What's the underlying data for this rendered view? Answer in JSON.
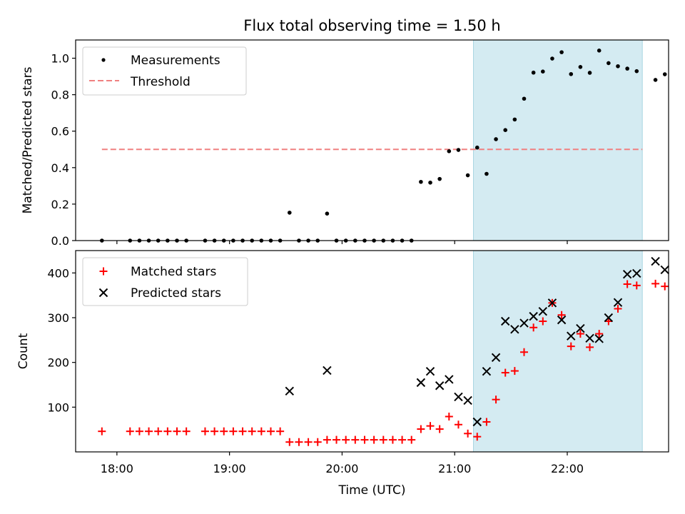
{
  "chart_data": [
    {
      "type": "scatter",
      "title": "Flux total observing time = 1.50 h",
      "xlabel": "",
      "ylabel": "Matched/Predicted stars",
      "ylim": [
        0,
        1.1
      ],
      "xlim": [
        "17:38",
        "22:54"
      ],
      "yticks": [
        0.0,
        0.2,
        0.4,
        0.6,
        0.8,
        1.0
      ],
      "yticklabels": [
        "0.0",
        "0.2",
        "0.4",
        "0.6",
        "0.8",
        "1.0"
      ],
      "highlight_span": {
        "start": "21:10",
        "end": "22:40",
        "color": "#d4ebf2"
      },
      "legend": {
        "placement": "upper-left",
        "entries": [
          "Measurements",
          "Threshold"
        ]
      },
      "series": [
        {
          "name": "Measurements",
          "color": "#000000",
          "marker": "dot",
          "points": [
            [
              "17:52",
              0.0
            ],
            [
              "18:07",
              0.0
            ],
            [
              "18:12",
              0.0
            ],
            [
              "18:17",
              0.0
            ],
            [
              "18:22",
              0.0
            ],
            [
              "18:27",
              0.0
            ],
            [
              "18:32",
              0.0
            ],
            [
              "18:37",
              0.0
            ],
            [
              "18:47",
              0.0
            ],
            [
              "18:52",
              0.0
            ],
            [
              "18:57",
              0.0
            ],
            [
              "19:02",
              0.0
            ],
            [
              "19:07",
              0.0
            ],
            [
              "19:12",
              0.0
            ],
            [
              "19:17",
              0.0
            ],
            [
              "19:22",
              0.0
            ],
            [
              "19:27",
              0.0
            ],
            [
              "19:32",
              0.153
            ],
            [
              "19:37",
              0.0
            ],
            [
              "19:42",
              0.0
            ],
            [
              "19:47",
              0.0
            ],
            [
              "19:52",
              0.148
            ],
            [
              "19:57",
              0.0
            ],
            [
              "20:02",
              0.0
            ],
            [
              "20:07",
              0.0
            ],
            [
              "20:12",
              0.0
            ],
            [
              "20:17",
              0.0
            ],
            [
              "20:22",
              0.0
            ],
            [
              "20:27",
              0.0
            ],
            [
              "20:32",
              0.0
            ],
            [
              "20:37",
              0.0
            ],
            [
              "20:42",
              0.322
            ],
            [
              "20:47",
              0.318
            ],
            [
              "20:52",
              0.338
            ],
            [
              "20:57",
              0.49
            ],
            [
              "21:02",
              0.497
            ],
            [
              "21:07",
              0.358
            ],
            [
              "21:12",
              0.51
            ],
            [
              "21:17",
              0.366
            ],
            [
              "21:22",
              0.556
            ],
            [
              "21:27",
              0.606
            ],
            [
              "21:32",
              0.664
            ],
            [
              "21:37",
              0.778
            ],
            [
              "21:42",
              0.921
            ],
            [
              "21:47",
              0.927
            ],
            [
              "21:52",
              0.998
            ],
            [
              "21:57",
              1.033
            ],
            [
              "22:02",
              0.913
            ],
            [
              "22:07",
              0.952
            ],
            [
              "22:12",
              0.92
            ],
            [
              "22:17",
              1.042
            ],
            [
              "22:22",
              0.973
            ],
            [
              "22:27",
              0.956
            ],
            [
              "22:32",
              0.943
            ],
            [
              "22:37",
              0.929
            ],
            [
              "22:47",
              0.881
            ],
            [
              "22:52",
              0.912
            ]
          ]
        },
        {
          "name": "Threshold",
          "color": "#f08080",
          "line": "dashed",
          "points": [
            [
              "17:52",
              0.5
            ],
            [
              "22:40",
              0.5
            ]
          ]
        }
      ]
    },
    {
      "type": "scatter",
      "title": "",
      "xlabel": "Time (UTC)",
      "ylabel": "Count",
      "ylim": [
        0,
        450
      ],
      "xlim": [
        "17:38",
        "22:54"
      ],
      "xticks": [
        "18:00",
        "19:00",
        "20:00",
        "21:00",
        "22:00"
      ],
      "xticklabels": [
        "18:00",
        "19:00",
        "20:00",
        "21:00",
        "22:00"
      ],
      "yticks": [
        100,
        200,
        300,
        400
      ],
      "yticklabels": [
        "100",
        "200",
        "300",
        "400"
      ],
      "highlight_span": {
        "start": "21:10",
        "end": "22:40",
        "color": "#d4ebf2"
      },
      "legend": {
        "placement": "upper-left",
        "entries": [
          "Matched stars",
          "Predicted stars"
        ]
      },
      "series": [
        {
          "name": "Matched stars",
          "color": "#ff0000",
          "marker": "plus",
          "points": [
            [
              "17:52",
              46
            ],
            [
              "18:07",
              46
            ],
            [
              "18:12",
              46
            ],
            [
              "18:17",
              46
            ],
            [
              "18:22",
              46
            ],
            [
              "18:27",
              46
            ],
            [
              "18:32",
              46
            ],
            [
              "18:37",
              46
            ],
            [
              "18:47",
              46
            ],
            [
              "18:52",
              46
            ],
            [
              "18:57",
              46
            ],
            [
              "19:02",
              46
            ],
            [
              "19:07",
              46
            ],
            [
              "19:12",
              46
            ],
            [
              "19:17",
              46
            ],
            [
              "19:22",
              46
            ],
            [
              "19:27",
              46
            ],
            [
              "19:32",
              22
            ],
            [
              "19:37",
              22
            ],
            [
              "19:42",
              22
            ],
            [
              "19:47",
              22
            ],
            [
              "19:52",
              27
            ],
            [
              "19:57",
              27
            ],
            [
              "20:02",
              27
            ],
            [
              "20:07",
              27
            ],
            [
              "20:12",
              27
            ],
            [
              "20:17",
              27
            ],
            [
              "20:22",
              27
            ],
            [
              "20:27",
              27
            ],
            [
              "20:32",
              27
            ],
            [
              "20:37",
              27
            ],
            [
              "20:42",
              51
            ],
            [
              "20:47",
              58
            ],
            [
              "20:52",
              51
            ],
            [
              "20:57",
              79
            ],
            [
              "21:02",
              61
            ],
            [
              "21:07",
              41
            ],
            [
              "21:12",
              34
            ],
            [
              "21:17",
              67
            ],
            [
              "21:22",
              117
            ],
            [
              "21:27",
              177
            ],
            [
              "21:32",
              181
            ],
            [
              "21:37",
              223
            ],
            [
              "21:42",
              278
            ],
            [
              "21:47",
              292
            ],
            [
              "21:52",
              333
            ],
            [
              "21:57",
              306
            ],
            [
              "22:02",
              236
            ],
            [
              "22:07",
              264
            ],
            [
              "22:12",
              234
            ],
            [
              "22:17",
              264
            ],
            [
              "22:22",
              292
            ],
            [
              "22:27",
              320
            ],
            [
              "22:32",
              375
            ],
            [
              "22:37",
              372
            ],
            [
              "22:47",
              376
            ],
            [
              "22:52",
              370
            ]
          ]
        },
        {
          "name": "Predicted stars",
          "color": "#000000",
          "marker": "x",
          "points": [
            [
              "19:32",
              136
            ],
            [
              "19:52",
              182
            ],
            [
              "20:42",
              155
            ],
            [
              "20:47",
              180
            ],
            [
              "20:52",
              148
            ],
            [
              "20:57",
              162
            ],
            [
              "21:02",
              123
            ],
            [
              "21:07",
              115
            ],
            [
              "21:12",
              67
            ],
            [
              "21:17",
              180
            ],
            [
              "21:22",
              211
            ],
            [
              "21:27",
              292
            ],
            [
              "21:32",
              274
            ],
            [
              "21:37",
              288
            ],
            [
              "21:42",
              303
            ],
            [
              "21:47",
              314
            ],
            [
              "21:52",
              333
            ],
            [
              "21:57",
              295
            ],
            [
              "22:02",
              259
            ],
            [
              "22:07",
              276
            ],
            [
              "22:12",
              254
            ],
            [
              "22:17",
              253
            ],
            [
              "22:22",
              300
            ],
            [
              "22:27",
              334
            ],
            [
              "22:32",
              397
            ],
            [
              "22:37",
              399
            ],
            [
              "22:47",
              426
            ],
            [
              "22:52",
              407
            ]
          ]
        }
      ]
    }
  ]
}
